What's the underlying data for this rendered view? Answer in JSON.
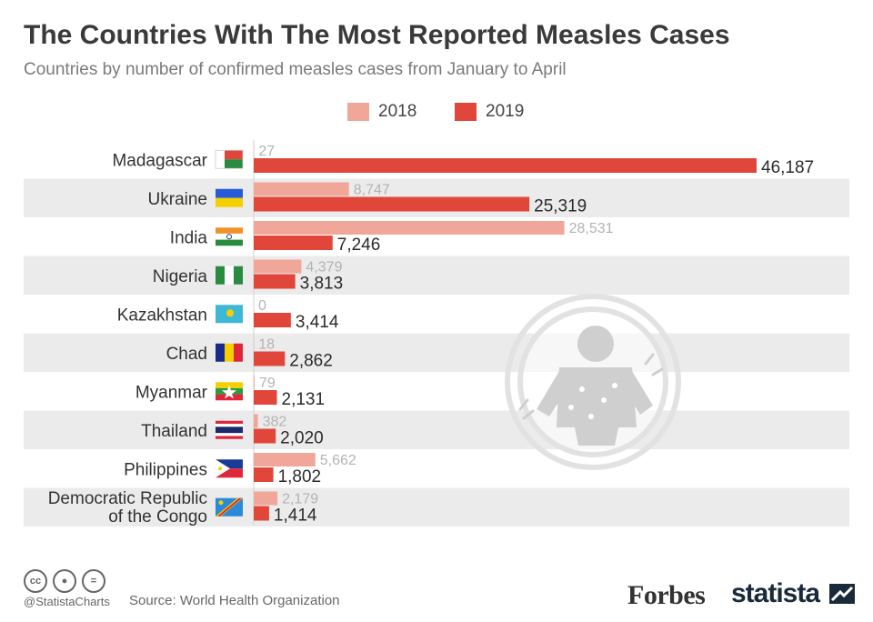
{
  "title": "The Countries With The Most Reported Measles Cases",
  "subtitle": "Countries by number of confirmed measles cases from January to April",
  "legend": [
    {
      "label": "2018",
      "color": "#f0a79a"
    },
    {
      "label": "2019",
      "color": "#e0473a"
    }
  ],
  "chart_data": {
    "type": "bar",
    "orientation": "horizontal",
    "categories": [
      "Madagascar",
      "Ukraine",
      "India",
      "Nigeria",
      "Kazakhstan",
      "Chad",
      "Myanmar",
      "Thailand",
      "Philippines",
      "Democratic Republic of the Congo"
    ],
    "category_lines": [
      [
        "Madagascar"
      ],
      [
        "Ukraine"
      ],
      [
        "India"
      ],
      [
        "Nigeria"
      ],
      [
        "Kazakhstan"
      ],
      [
        "Chad"
      ],
      [
        "Myanmar"
      ],
      [
        "Thailand"
      ],
      [
        "Philippines"
      ],
      [
        "Democratic Republic",
        "of the Congo"
      ]
    ],
    "series": [
      {
        "name": "2018",
        "color": "#f0a79a",
        "values": [
          27,
          8747,
          28531,
          4379,
          0,
          18,
          79,
          382,
          5662,
          2179
        ],
        "labels": [
          "27",
          "8,747",
          "28,531",
          "4,379",
          "0",
          "18",
          "79",
          "382",
          "5,662",
          "2,179"
        ]
      },
      {
        "name": "2019",
        "color": "#e0473a",
        "values": [
          46187,
          25319,
          7246,
          3813,
          3414,
          2862,
          2131,
          2020,
          1802,
          1414
        ],
        "labels": [
          "46,187",
          "25,319",
          "7,246",
          "3,813",
          "3,414",
          "2,862",
          "2,131",
          "2,020",
          "1,802",
          "1,414"
        ]
      }
    ],
    "xlim": [
      0,
      46187
    ],
    "grid": false,
    "legend_position": "top-center",
    "icons": [
      "flag-madagascar-icon",
      "flag-ukraine-icon",
      "flag-india-icon",
      "flag-nigeria-icon",
      "flag-kazakhstan-icon",
      "flag-chad-icon",
      "flag-myanmar-icon",
      "flag-thailand-icon",
      "flag-philippines-icon",
      "flag-dr-congo-icon"
    ]
  },
  "footer": {
    "handle": "@StatistaCharts",
    "source": "Source: World Health Organization",
    "forbes": "Forbes",
    "statista": "statista"
  }
}
